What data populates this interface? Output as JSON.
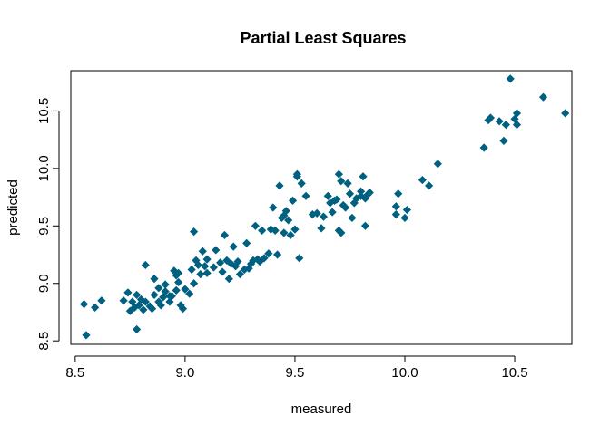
{
  "chart_data": {
    "type": "scatter",
    "title": "Partial Least Squares",
    "xlabel": "measured",
    "ylabel": "predicted",
    "xlim": [
      8.48,
      10.76
    ],
    "ylim": [
      8.47,
      10.85
    ],
    "xticks": [
      8.5,
      9.0,
      9.5,
      10.0,
      10.5
    ],
    "xtick_labels": [
      "8.5",
      "9.0",
      "9.5",
      "10.0",
      "10.5"
    ],
    "yticks": [
      8.5,
      9.0,
      9.5,
      10.0,
      10.5
    ],
    "ytick_labels": [
      "8.5",
      "9.0",
      "9.5",
      "10.0",
      "10.5"
    ],
    "marker": "diamond",
    "color": "#006080",
    "grid": false,
    "points": [
      [
        8.55,
        8.55
      ],
      [
        8.54,
        8.82
      ],
      [
        8.59,
        8.79
      ],
      [
        8.62,
        8.85
      ],
      [
        8.72,
        8.85
      ],
      [
        8.74,
        8.92
      ],
      [
        8.75,
        8.76
      ],
      [
        8.76,
        8.84
      ],
      [
        8.77,
        8.79
      ],
      [
        8.78,
        8.6
      ],
      [
        8.78,
        8.9
      ],
      [
        8.79,
        8.81
      ],
      [
        8.8,
        8.86
      ],
      [
        8.81,
        8.77
      ],
      [
        8.82,
        8.84
      ],
      [
        8.82,
        9.16
      ],
      [
        8.84,
        8.8
      ],
      [
        8.85,
        8.78
      ],
      [
        8.86,
        8.9
      ],
      [
        8.86,
        9.04
      ],
      [
        8.88,
        8.84
      ],
      [
        8.88,
        8.96
      ],
      [
        8.89,
        8.81
      ],
      [
        8.9,
        8.88
      ],
      [
        8.91,
        8.93
      ],
      [
        8.91,
        8.99
      ],
      [
        8.93,
        8.84
      ],
      [
        8.93,
        8.89
      ],
      [
        8.94,
        8.89
      ],
      [
        8.95,
        9.11
      ],
      [
        8.96,
        8.94
      ],
      [
        8.96,
        9.07
      ],
      [
        8.97,
        9.01
      ],
      [
        8.97,
        9.09
      ],
      [
        8.98,
        8.81
      ],
      [
        8.99,
        8.78
      ],
      [
        9.0,
        8.95
      ],
      [
        9.02,
        8.91
      ],
      [
        9.03,
        9.12
      ],
      [
        9.04,
        9.45
      ],
      [
        9.04,
        9.0
      ],
      [
        9.05,
        9.2
      ],
      [
        9.06,
        9.16
      ],
      [
        9.07,
        9.08
      ],
      [
        9.08,
        9.28
      ],
      [
        9.09,
        9.15
      ],
      [
        9.1,
        9.21
      ],
      [
        9.1,
        9.09
      ],
      [
        9.13,
        9.14
      ],
      [
        9.14,
        9.29
      ],
      [
        9.16,
        9.18
      ],
      [
        9.17,
        9.1
      ],
      [
        9.18,
        9.42
      ],
      [
        9.19,
        9.2
      ],
      [
        9.2,
        9.04
      ],
      [
        9.21,
        9.17
      ],
      [
        9.22,
        9.32
      ],
      [
        9.23,
        9.15
      ],
      [
        9.24,
        9.19
      ],
      [
        9.25,
        9.08
      ],
      [
        9.27,
        9.12
      ],
      [
        9.28,
        9.35
      ],
      [
        9.29,
        9.13
      ],
      [
        9.3,
        9.17
      ],
      [
        9.31,
        9.2
      ],
      [
        9.32,
        9.5
      ],
      [
        9.33,
        9.21
      ],
      [
        9.34,
        9.19
      ],
      [
        9.35,
        9.46
      ],
      [
        9.36,
        9.22
      ],
      [
        9.38,
        9.26
      ],
      [
        9.39,
        9.47
      ],
      [
        9.4,
        9.66
      ],
      [
        9.41,
        9.46
      ],
      [
        9.42,
        9.25
      ],
      [
        9.43,
        9.85
      ],
      [
        9.44,
        9.57
      ],
      [
        9.45,
        9.44
      ],
      [
        9.45,
        9.59
      ],
      [
        9.46,
        9.63
      ],
      [
        9.47,
        9.55
      ],
      [
        9.48,
        9.42
      ],
      [
        9.49,
        9.72
      ],
      [
        9.5,
        9.47
      ],
      [
        9.51,
        9.93
      ],
      [
        9.51,
        9.95
      ],
      [
        9.52,
        9.22
      ],
      [
        9.53,
        9.87
      ],
      [
        9.55,
        9.76
      ],
      [
        9.58,
        9.6
      ],
      [
        9.6,
        9.61
      ],
      [
        9.62,
        9.48
      ],
      [
        9.63,
        9.58
      ],
      [
        9.65,
        9.76
      ],
      [
        9.66,
        9.7
      ],
      [
        9.67,
        9.62
      ],
      [
        9.68,
        9.72
      ],
      [
        9.69,
        9.73
      ],
      [
        9.7,
        9.46
      ],
      [
        9.7,
        9.95
      ],
      [
        9.71,
        9.89
      ],
      [
        9.71,
        9.44
      ],
      [
        9.72,
        9.68
      ],
      [
        9.73,
        9.66
      ],
      [
        9.74,
        9.87
      ],
      [
        9.75,
        9.78
      ],
      [
        9.76,
        9.57
      ],
      [
        9.77,
        9.7
      ],
      [
        9.78,
        9.74
      ],
      [
        9.8,
        9.76
      ],
      [
        9.8,
        9.8
      ],
      [
        9.81,
        9.93
      ],
      [
        9.82,
        9.74
      ],
      [
        9.82,
        9.5
      ],
      [
        9.83,
        9.77
      ],
      [
        9.84,
        9.79
      ],
      [
        9.96,
        9.67
      ],
      [
        9.96,
        9.6
      ],
      [
        9.97,
        9.78
      ],
      [
        10.0,
        9.57
      ],
      [
        10.01,
        9.64
      ],
      [
        10.08,
        9.9
      ],
      [
        10.11,
        9.85
      ],
      [
        10.15,
        10.04
      ],
      [
        10.36,
        10.18
      ],
      [
        10.38,
        10.42
      ],
      [
        10.39,
        10.44
      ],
      [
        10.43,
        10.41
      ],
      [
        10.45,
        10.24
      ],
      [
        10.46,
        10.38
      ],
      [
        10.48,
        10.78
      ],
      [
        10.5,
        10.43
      ],
      [
        10.51,
        10.38
      ],
      [
        10.51,
        10.48
      ],
      [
        10.63,
        10.62
      ],
      [
        10.73,
        10.48
      ]
    ]
  }
}
